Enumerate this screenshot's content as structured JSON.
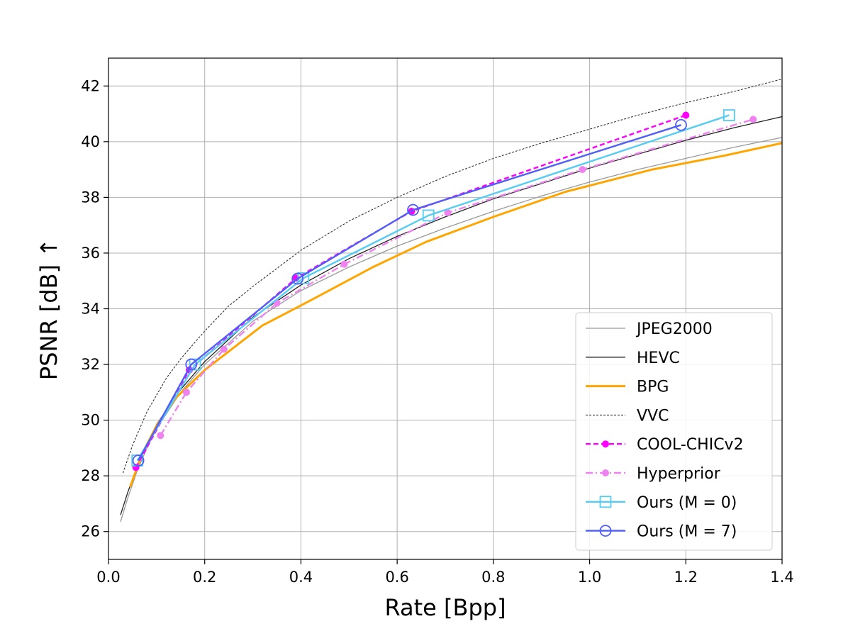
{
  "chart_data": {
    "type": "line",
    "title": "",
    "xlabel": "Rate [Bpp]",
    "ylabel": "PSNR [dB] ↑",
    "xlim": [
      0.0,
      1.4
    ],
    "ylim": [
      25.0,
      43.0
    ],
    "xticks": [
      "0.0",
      "0.2",
      "0.4",
      "0.6",
      "0.8",
      "1.0",
      "1.2",
      "1.4"
    ],
    "yticks": [
      "26",
      "28",
      "30",
      "32",
      "34",
      "36",
      "38",
      "40",
      "42"
    ],
    "grid": true,
    "legend_position": "bottom-right",
    "series": [
      {
        "name": "JPEG2000",
        "color": "#999999",
        "style": "solid",
        "marker": "none",
        "x": [
          0.025,
          0.04,
          0.06,
          0.08,
          0.1,
          0.15,
          0.2,
          0.3,
          0.4,
          0.5,
          0.6,
          0.7,
          0.8,
          0.9,
          1.0,
          1.1,
          1.2,
          1.3,
          1.4
        ],
        "y": [
          26.35,
          27.2,
          28.2,
          29.0,
          29.7,
          31.0,
          32.0,
          33.55,
          34.65,
          35.5,
          36.25,
          36.9,
          37.5,
          38.05,
          38.55,
          39.0,
          39.4,
          39.8,
          40.15
        ]
      },
      {
        "name": "HEVC",
        "color": "#222222",
        "style": "solid",
        "marker": "none",
        "x": [
          0.025,
          0.04,
          0.06,
          0.08,
          0.1,
          0.15,
          0.2,
          0.3,
          0.4,
          0.5,
          0.6,
          0.7,
          0.8,
          0.9,
          1.0,
          1.1,
          1.2,
          1.3,
          1.4
        ],
        "y": [
          26.6,
          27.4,
          28.35,
          29.15,
          29.85,
          31.1,
          32.1,
          33.7,
          34.85,
          35.8,
          36.6,
          37.3,
          37.95,
          38.5,
          39.05,
          39.55,
          40.05,
          40.5,
          40.9
        ]
      },
      {
        "name": "BPG",
        "color": "#ffa500",
        "style": "solid",
        "marker": "none",
        "x": [
          0.045,
          0.07,
          0.1,
          0.14,
          0.2,
          0.32,
          0.42,
          0.55,
          0.66,
          0.8,
          0.95,
          1.13,
          1.28,
          1.4
        ],
        "y": [
          27.6,
          28.8,
          29.8,
          30.8,
          31.8,
          33.4,
          34.3,
          35.5,
          36.4,
          37.3,
          38.2,
          39.0,
          39.5,
          39.95
        ]
      },
      {
        "name": "VVC",
        "color": "#333333",
        "style": "dotted",
        "marker": "none",
        "x": [
          0.03,
          0.05,
          0.08,
          0.12,
          0.15,
          0.2,
          0.25,
          0.3,
          0.4,
          0.5,
          0.6,
          0.7,
          0.8,
          0.9,
          1.0,
          1.1,
          1.2,
          1.3,
          1.4
        ],
        "y": [
          28.1,
          29.1,
          30.3,
          31.5,
          32.2,
          33.2,
          34.1,
          34.8,
          36.1,
          37.15,
          38.0,
          38.75,
          39.4,
          39.95,
          40.45,
          40.95,
          41.4,
          41.8,
          42.25
        ]
      },
      {
        "name": "COOL-CHICv2",
        "color": "#ff00ff",
        "style": "dashed",
        "marker": "dot",
        "x": [
          0.057,
          0.168,
          0.39,
          0.63,
          1.2
        ],
        "y": [
          28.3,
          31.8,
          35.1,
          37.5,
          40.95
        ]
      },
      {
        "name": "Hyperprior",
        "color": "#ee82ee",
        "style": "dashdot",
        "marker": "dot",
        "x": [
          0.108,
          0.162,
          0.24,
          0.35,
          0.49,
          0.705,
          0.985,
          1.34
        ],
        "y": [
          29.45,
          31.0,
          32.55,
          34.2,
          35.6,
          37.45,
          39.0,
          40.8
        ]
      },
      {
        "name": "Ours (M = 0)",
        "color": "#55ccf2",
        "style": "solid",
        "marker": "square",
        "x": [
          0.06,
          0.18,
          0.405,
          0.665,
          1.29
        ],
        "y": [
          28.55,
          32.0,
          35.1,
          37.35,
          40.95
        ]
      },
      {
        "name": "Ours (M = 7)",
        "color": "#4f5ef5",
        "style": "solid",
        "marker": "circle",
        "x": [
          0.062,
          0.172,
          0.393,
          0.633,
          1.19
        ],
        "y": [
          28.55,
          32.0,
          35.08,
          37.55,
          40.6
        ]
      }
    ]
  }
}
